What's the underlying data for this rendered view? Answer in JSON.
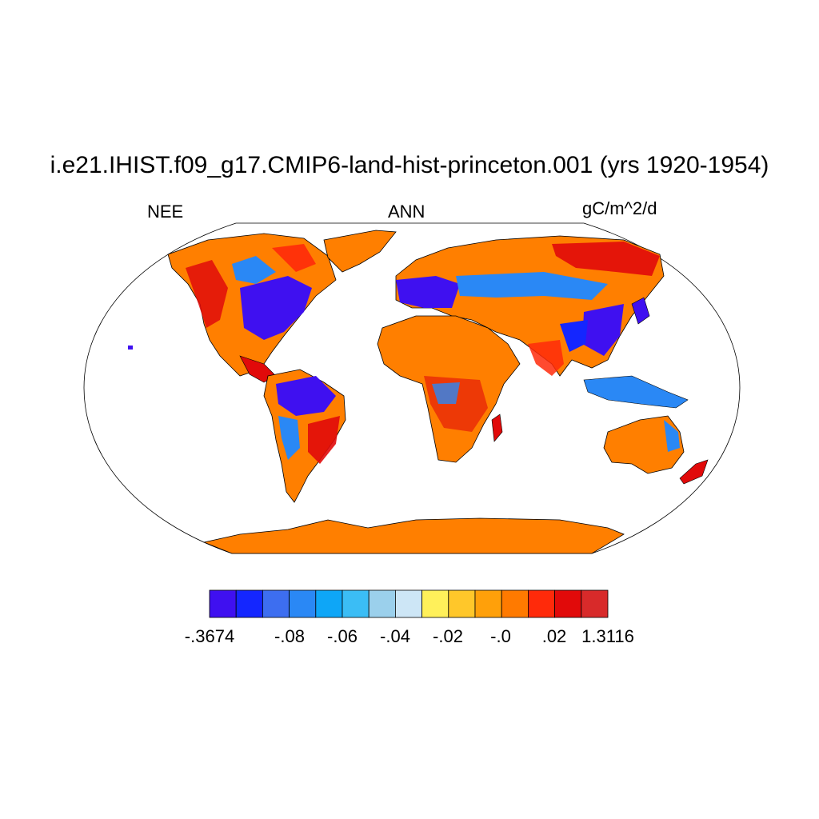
{
  "title": "i.e21.IHIST.f09_g17.CMIP6-land-hist-princeton.001 (yrs 1920-1954)",
  "subtitle_left": "NEE",
  "subtitle_center": "ANN",
  "subtitle_right": "gC/m^2/d",
  "colors": {
    "land_default": "#ff7f00",
    "ocean": "#ffffff",
    "coastline": "#000000"
  },
  "colorbar": {
    "colors": [
      "#3f10f0",
      "#1426ff",
      "#3d6ef0",
      "#2a88f5",
      "#0ea6f7",
      "#3bbdf5",
      "#9bd0ec",
      "#cde6f6",
      "#fff05a",
      "#ffc72a",
      "#ffa00a",
      "#ff7a00",
      "#ff2a0a",
      "#e10a0a",
      "#d82a2a"
    ],
    "labels": [
      "-.3674",
      "-.08",
      "-.06",
      "-.04",
      "-.02",
      "-.0",
      ".02",
      "1.3116"
    ]
  }
}
